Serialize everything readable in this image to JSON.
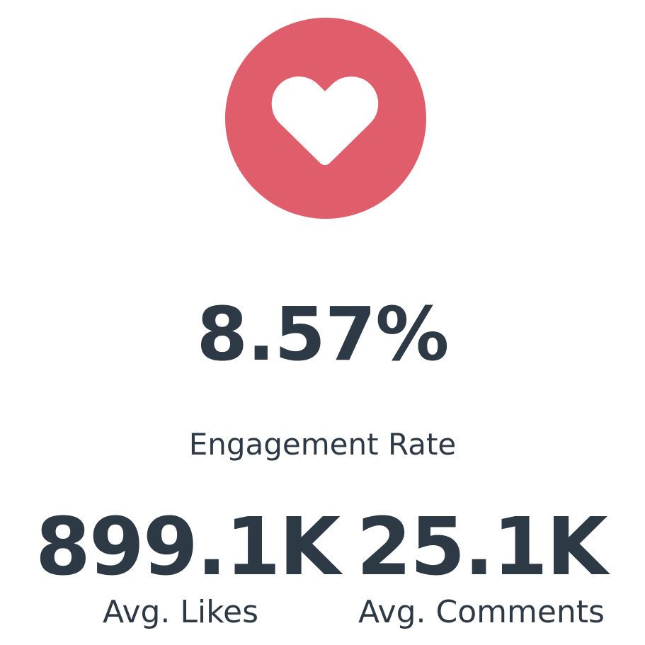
{
  "colors": {
    "accent": "#e05d6b",
    "text": "#2d3a45",
    "background": "#ffffff"
  },
  "icon": "heart-icon",
  "engagement": {
    "value": "8.57%",
    "label": "Engagement Rate"
  },
  "stats": {
    "likes": {
      "value": "899.1K",
      "label": "Avg. Likes"
    },
    "comments": {
      "value": "25.1K",
      "label": "Avg. Comments"
    }
  }
}
